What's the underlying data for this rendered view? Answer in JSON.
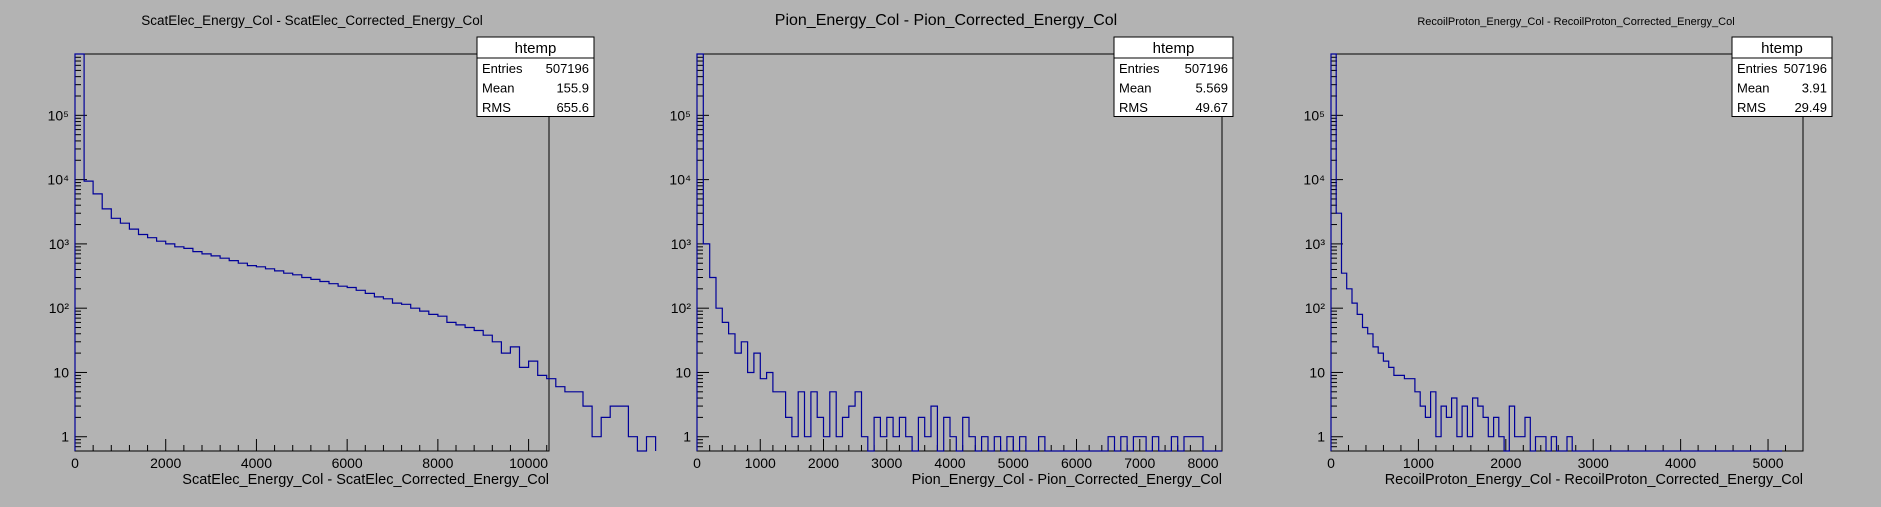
{
  "chart_data": [
    {
      "type": "histogram",
      "title": "ScatElec_Energy_Col - ScatElec_Corrected_Energy_Col",
      "xlabel": "ScatElec_Energy_Col - ScatElec_Corrected_Energy_Col",
      "ylabel": "",
      "log_y": true,
      "xlim": [
        0,
        10450
      ],
      "ylim": [
        0.6,
        900000
      ],
      "x_ticks": [
        0,
        2000,
        4000,
        6000,
        8000,
        10000
      ],
      "x_tick_labels": [
        "0",
        "2000",
        "4000",
        "6000",
        "8000",
        "10000"
      ],
      "y_ticks": [
        1,
        10,
        100,
        1000,
        10000,
        100000
      ],
      "y_tick_labels": [
        "1",
        "10",
        "10²",
        "10³",
        "10⁴",
        "10⁵"
      ],
      "bin_width": 200,
      "x_start": 0,
      "values": [
        900000,
        9500,
        6000,
        3500,
        2500,
        2100,
        1700,
        1400,
        1250,
        1100,
        1000,
        900,
        850,
        760,
        700,
        650,
        600,
        550,
        500,
        460,
        440,
        410,
        380,
        350,
        330,
        300,
        280,
        260,
        240,
        220,
        210,
        190,
        170,
        150,
        140,
        120,
        115,
        100,
        90,
        80,
        75,
        60,
        55,
        50,
        45,
        38,
        30,
        20,
        25,
        12,
        15,
        9,
        8,
        6,
        5,
        5,
        3,
        1,
        2,
        3,
        3,
        1,
        0.5,
        1
      ],
      "stats": {
        "title": "htemp",
        "rows": [
          {
            "label": "Entries",
            "value": "507196"
          },
          {
            "label": "Mean",
            "value": "155.9"
          },
          {
            "label": "RMS",
            "value": "655.6"
          }
        ]
      },
      "line_color": "#000099",
      "grid": false
    },
    {
      "type": "histogram",
      "title": "Pion_Energy_Col - Pion_Corrected_Energy_Col",
      "xlabel": "Pion_Energy_Col - Pion_Corrected_Energy_Col",
      "ylabel": "",
      "log_y": true,
      "xlim": [
        0,
        8300
      ],
      "ylim": [
        0.6,
        900000
      ],
      "x_ticks": [
        0,
        1000,
        2000,
        3000,
        4000,
        5000,
        6000,
        7000,
        8000
      ],
      "x_tick_labels": [
        "0",
        "1000",
        "2000",
        "3000",
        "4000",
        "5000",
        "6000",
        "7000",
        "8000"
      ],
      "y_ticks": [
        1,
        10,
        100,
        1000,
        10000,
        100000
      ],
      "y_tick_labels": [
        "1",
        "10",
        "10²",
        "10³",
        "10⁴",
        "10⁵"
      ],
      "bin_width": 100,
      "x_start": 0,
      "values": [
        900000,
        1000,
        300,
        100,
        60,
        40,
        20,
        30,
        10,
        20,
        8,
        10,
        5,
        5,
        2,
        1,
        5,
        1,
        5,
        2,
        1,
        5,
        1,
        2,
        3,
        5,
        1,
        0.5,
        2,
        1,
        2,
        1,
        2,
        1,
        0.5,
        2,
        1,
        3,
        0.5,
        2,
        1,
        0.5,
        2,
        1,
        0.5,
        1,
        0.5,
        1,
        0.5,
        1,
        0.5,
        1,
        0.5,
        0.5,
        1,
        0.5,
        0.5,
        0.5,
        0.5,
        0.5,
        0.5,
        0.5,
        0.5,
        0.5,
        0.5,
        1,
        0.5,
        1,
        0.5,
        1,
        1,
        0.5,
        1,
        0.5,
        0.5,
        1,
        0.5,
        1,
        1,
        1,
        0.5,
        0.5,
        0.5
      ],
      "stats": {
        "title": "htemp",
        "rows": [
          {
            "label": "Entries",
            "value": "507196"
          },
          {
            "label": "Mean",
            "value": "5.569"
          },
          {
            "label": "RMS",
            "value": "49.67"
          }
        ]
      },
      "line_color": "#000099",
      "grid": false
    },
    {
      "type": "histogram",
      "title": "RecoilProton_Energy_Col - RecoilProton_Corrected_Energy_Col",
      "xlabel": "RecoilProton_Energy_Col - RecoilProton_Corrected_Energy_Col",
      "ylabel": "",
      "log_y": true,
      "xlim": [
        0,
        5400
      ],
      "ylim": [
        0.6,
        900000
      ],
      "x_ticks": [
        0,
        1000,
        2000,
        3000,
        4000,
        5000
      ],
      "x_tick_labels": [
        "0",
        "1000",
        "2000",
        "3000",
        "4000",
        "5000"
      ],
      "y_ticks": [
        1,
        10,
        100,
        1000,
        10000,
        100000
      ],
      "y_tick_labels": [
        "1",
        "10",
        "10²",
        "10³",
        "10⁴",
        "10⁵"
      ],
      "bin_width": 60,
      "x_start": 0,
      "values": [
        900000,
        3000,
        350,
        200,
        120,
        80,
        50,
        40,
        25,
        20,
        15,
        12,
        9,
        9,
        8,
        8,
        5,
        3,
        2,
        5,
        1,
        3,
        2,
        4,
        1,
        3,
        1,
        4,
        3,
        2,
        1,
        2,
        1,
        0.5,
        3,
        1,
        1,
        2,
        0.5,
        1,
        1,
        0.5,
        1,
        0.5,
        0.5,
        1,
        0.5,
        0.5,
        0.5,
        0.5,
        0.5,
        0.5,
        0.5,
        0.5,
        0.5,
        0.5,
        0.5,
        0.5,
        0.5,
        0.5,
        0.5,
        0.5,
        0.5,
        0.5,
        0.5,
        0.5,
        0.5,
        0.5,
        0.5,
        0.5,
        0.5,
        0.5,
        0.5,
        0.5,
        0.5,
        0.5,
        0.5,
        0.5,
        0.5,
        0.5,
        0.5,
        0.5,
        0.5,
        0.5,
        0.5,
        0.5
      ],
      "stats": {
        "title": "htemp",
        "rows": [
          {
            "label": "Entries",
            "value": "507196"
          },
          {
            "label": "Mean",
            "value": "3.91"
          },
          {
            "label": "RMS",
            "value": "29.49"
          }
        ]
      },
      "line_color": "#000099",
      "grid": false
    }
  ]
}
